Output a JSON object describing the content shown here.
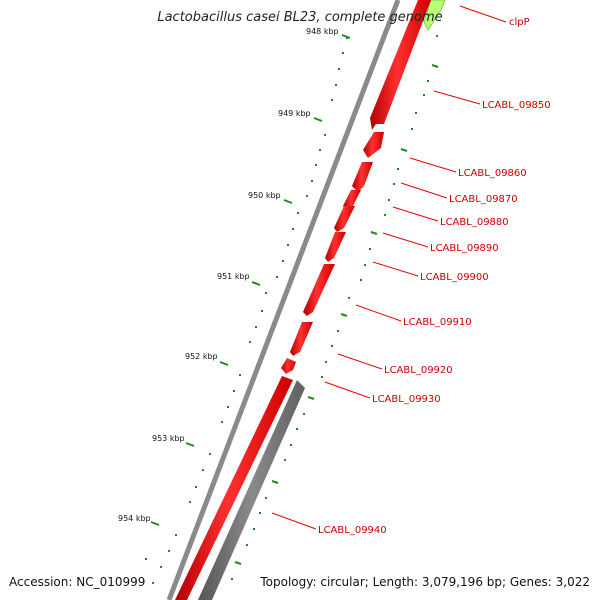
{
  "title": "Lactobacillus casei BL23, complete genome",
  "footer": {
    "accession": "Accession: NC_010999",
    "summary": "Topology: circular; Length: 3,079,196 bp; Genes: 3,022"
  },
  "ticks": [
    "948 kbp",
    "949 kbp",
    "950 kbp",
    "951 kbp",
    "952 kbp",
    "953 kbp",
    "954 kbp"
  ],
  "genes": [
    "clpP",
    "LCABL_09850",
    "LCABL_09860",
    "LCABL_09870",
    "LCABL_09880",
    "LCABL_09890",
    "LCABL_09900",
    "LCABL_09910",
    "LCABL_09920",
    "LCABL_09930",
    "LCABL_09940"
  ],
  "colors": {
    "forward_gene": "#ff0000",
    "reverse_gene": "#777777",
    "backbone": "#888888",
    "ticks": "#228b22",
    "label": "#cc0000",
    "highlight_gene": "#a6ff66"
  }
}
